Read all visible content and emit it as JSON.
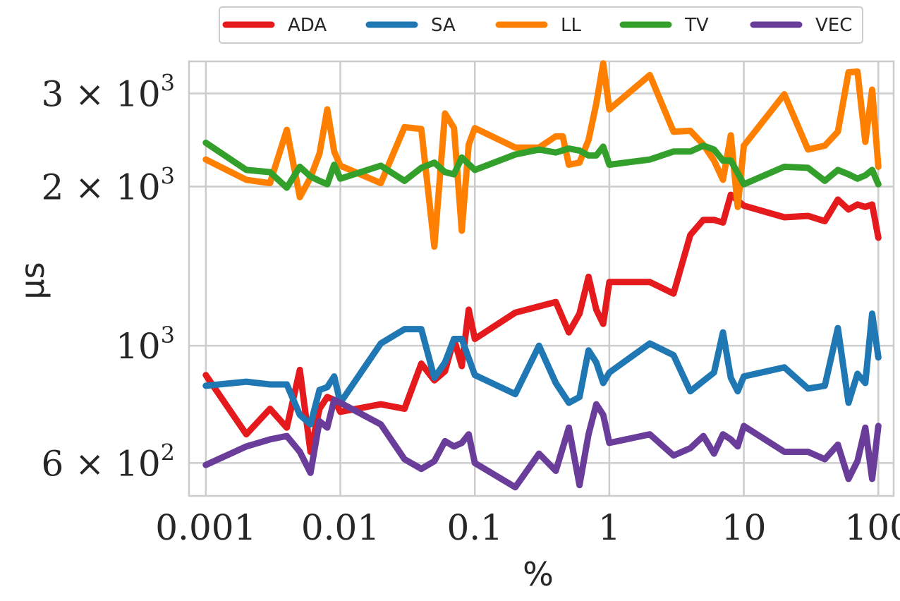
{
  "chart_data": {
    "type": "line",
    "title": "",
    "xlabel": "%",
    "ylabel": "μs",
    "xscale": "log",
    "yscale": "log",
    "xlim": [
      0.00075,
      130
    ],
    "ylim": [
      520,
      3450
    ],
    "grid": true,
    "legend_position": "top",
    "x_ticks": [
      {
        "value": 0.001,
        "label": "0.001"
      },
      {
        "value": 0.01,
        "label": "0.01"
      },
      {
        "value": 0.1,
        "label": "0.1"
      },
      {
        "value": 1,
        "label": "1"
      },
      {
        "value": 10,
        "label": "10"
      },
      {
        "value": 100,
        "label": "100"
      }
    ],
    "y_ticks": [
      {
        "value": 600,
        "mantissa": "6 ×",
        "base": "10",
        "exp": "2"
      },
      {
        "value": 1000,
        "mantissa": "",
        "base": "10",
        "exp": "3"
      },
      {
        "value": 2000,
        "mantissa": "2 ×",
        "base": "10",
        "exp": "3"
      },
      {
        "value": 3000,
        "mantissa": "3 ×",
        "base": "10",
        "exp": "3"
      }
    ],
    "series": [
      {
        "name": "ADA",
        "color": "#e41a1c",
        "points": [
          [
            0.001,
            880
          ],
          [
            0.002,
            680
          ],
          [
            0.003,
            760
          ],
          [
            0.004,
            700
          ],
          [
            0.005,
            900
          ],
          [
            0.006,
            630
          ],
          [
            0.007,
            760
          ],
          [
            0.008,
            800
          ],
          [
            0.009,
            790
          ],
          [
            0.01,
            750
          ],
          [
            0.02,
            775
          ],
          [
            0.03,
            760
          ],
          [
            0.04,
            925
          ],
          [
            0.05,
            860
          ],
          [
            0.06,
            895
          ],
          [
            0.07,
            1030
          ],
          [
            0.08,
            915
          ],
          [
            0.09,
            1170
          ],
          [
            0.1,
            1030
          ],
          [
            0.2,
            1155
          ],
          [
            0.4,
            1210
          ],
          [
            0.5,
            1060
          ],
          [
            0.6,
            1150
          ],
          [
            0.7,
            1350
          ],
          [
            0.8,
            1170
          ],
          [
            0.9,
            1100
          ],
          [
            1,
            1320
          ],
          [
            2,
            1320
          ],
          [
            3,
            1255
          ],
          [
            4,
            1620
          ],
          [
            5,
            1730
          ],
          [
            6,
            1730
          ],
          [
            7,
            1710
          ],
          [
            8,
            1930
          ],
          [
            10,
            1840
          ],
          [
            20,
            1750
          ],
          [
            30,
            1760
          ],
          [
            40,
            1720
          ],
          [
            50,
            1890
          ],
          [
            60,
            1810
          ],
          [
            70,
            1850
          ],
          [
            80,
            1830
          ],
          [
            90,
            1850
          ],
          [
            100,
            1600
          ]
        ]
      },
      {
        "name": "SA",
        "color": "#1f78b4",
        "points": [
          [
            0.001,
            840
          ],
          [
            0.002,
            855
          ],
          [
            0.003,
            845
          ],
          [
            0.004,
            845
          ],
          [
            0.005,
            740
          ],
          [
            0.006,
            710
          ],
          [
            0.007,
            825
          ],
          [
            0.008,
            835
          ],
          [
            0.009,
            875
          ],
          [
            0.01,
            780
          ],
          [
            0.02,
            1010
          ],
          [
            0.03,
            1075
          ],
          [
            0.04,
            1075
          ],
          [
            0.05,
            870
          ],
          [
            0.06,
            930
          ],
          [
            0.07,
            1030
          ],
          [
            0.08,
            1030
          ],
          [
            0.1,
            880
          ],
          [
            0.2,
            810
          ],
          [
            0.3,
            1000
          ],
          [
            0.4,
            850
          ],
          [
            0.5,
            780
          ],
          [
            0.6,
            800
          ],
          [
            0.7,
            980
          ],
          [
            0.8,
            930
          ],
          [
            0.9,
            850
          ],
          [
            1,
            890
          ],
          [
            2,
            1010
          ],
          [
            3,
            960
          ],
          [
            4,
            820
          ],
          [
            6,
            890
          ],
          [
            7,
            1060
          ],
          [
            8,
            870
          ],
          [
            9,
            820
          ],
          [
            10,
            875
          ],
          [
            20,
            910
          ],
          [
            30,
            830
          ],
          [
            40,
            840
          ],
          [
            50,
            1080
          ],
          [
            60,
            780
          ],
          [
            70,
            885
          ],
          [
            80,
            850
          ],
          [
            90,
            1150
          ],
          [
            100,
            950
          ]
        ]
      },
      {
        "name": "LL",
        "color": "#ff7f00",
        "points": [
          [
            0.001,
            2250
          ],
          [
            0.002,
            2060
          ],
          [
            0.003,
            2030
          ],
          [
            0.004,
            2560
          ],
          [
            0.005,
            1910
          ],
          [
            0.006,
            2080
          ],
          [
            0.007,
            2310
          ],
          [
            0.008,
            2800
          ],
          [
            0.009,
            2330
          ],
          [
            0.01,
            2190
          ],
          [
            0.02,
            2030
          ],
          [
            0.03,
            2590
          ],
          [
            0.04,
            2570
          ],
          [
            0.05,
            1540
          ],
          [
            0.06,
            2750
          ],
          [
            0.07,
            2580
          ],
          [
            0.08,
            1650
          ],
          [
            0.09,
            2400
          ],
          [
            0.1,
            2580
          ],
          [
            0.2,
            2370
          ],
          [
            0.3,
            2370
          ],
          [
            0.4,
            2490
          ],
          [
            0.45,
            2490
          ],
          [
            0.5,
            2200
          ],
          [
            0.6,
            2220
          ],
          [
            0.7,
            2450
          ],
          [
            0.8,
            2870
          ],
          [
            0.9,
            3420
          ],
          [
            1,
            2800
          ],
          [
            2,
            3250
          ],
          [
            3,
            2540
          ],
          [
            4,
            2550
          ],
          [
            5,
            2400
          ],
          [
            6,
            2240
          ],
          [
            7,
            2060
          ],
          [
            8,
            2500
          ],
          [
            9,
            1830
          ],
          [
            10,
            2390
          ],
          [
            20,
            2990
          ],
          [
            30,
            2350
          ],
          [
            40,
            2390
          ],
          [
            50,
            2540
          ],
          [
            60,
            3290
          ],
          [
            70,
            3300
          ],
          [
            80,
            2430
          ],
          [
            90,
            3050
          ],
          [
            100,
            2180
          ]
        ]
      },
      {
        "name": "TV",
        "color": "#33a02c",
        "points": [
          [
            0.001,
            2420
          ],
          [
            0.002,
            2150
          ],
          [
            0.003,
            2130
          ],
          [
            0.004,
            1990
          ],
          [
            0.005,
            2180
          ],
          [
            0.006,
            2090
          ],
          [
            0.007,
            2050
          ],
          [
            0.008,
            2020
          ],
          [
            0.009,
            2200
          ],
          [
            0.01,
            2070
          ],
          [
            0.02,
            2190
          ],
          [
            0.03,
            2050
          ],
          [
            0.04,
            2170
          ],
          [
            0.05,
            2220
          ],
          [
            0.06,
            2130
          ],
          [
            0.07,
            2110
          ],
          [
            0.08,
            2270
          ],
          [
            0.1,
            2150
          ],
          [
            0.2,
            2300
          ],
          [
            0.3,
            2350
          ],
          [
            0.4,
            2320
          ],
          [
            0.5,
            2360
          ],
          [
            0.6,
            2340
          ],
          [
            0.7,
            2290
          ],
          [
            0.8,
            2290
          ],
          [
            0.9,
            2380
          ],
          [
            1,
            2200
          ],
          [
            2,
            2250
          ],
          [
            3,
            2330
          ],
          [
            4,
            2330
          ],
          [
            5,
            2390
          ],
          [
            6,
            2350
          ],
          [
            7,
            2240
          ],
          [
            8,
            2240
          ],
          [
            10,
            2020
          ],
          [
            20,
            2180
          ],
          [
            30,
            2170
          ],
          [
            40,
            2050
          ],
          [
            50,
            2150
          ],
          [
            60,
            2110
          ],
          [
            70,
            2070
          ],
          [
            80,
            2100
          ],
          [
            90,
            2150
          ],
          [
            100,
            2020
          ]
        ]
      },
      {
        "name": "VEC",
        "color": "#6a3d9a",
        "points": [
          [
            0.001,
            595
          ],
          [
            0.002,
            645
          ],
          [
            0.003,
            665
          ],
          [
            0.004,
            675
          ],
          [
            0.005,
            630
          ],
          [
            0.006,
            575
          ],
          [
            0.007,
            720
          ],
          [
            0.008,
            700
          ],
          [
            0.009,
            790
          ],
          [
            0.01,
            780
          ],
          [
            0.02,
            710
          ],
          [
            0.03,
            610
          ],
          [
            0.04,
            585
          ],
          [
            0.05,
            605
          ],
          [
            0.06,
            660
          ],
          [
            0.07,
            645
          ],
          [
            0.08,
            655
          ],
          [
            0.09,
            680
          ],
          [
            0.1,
            600
          ],
          [
            0.2,
            540
          ],
          [
            0.3,
            625
          ],
          [
            0.4,
            580
          ],
          [
            0.5,
            700
          ],
          [
            0.6,
            545
          ],
          [
            0.7,
            680
          ],
          [
            0.8,
            775
          ],
          [
            0.9,
            740
          ],
          [
            1,
            655
          ],
          [
            2,
            680
          ],
          [
            3,
            620
          ],
          [
            4,
            640
          ],
          [
            5,
            675
          ],
          [
            6,
            625
          ],
          [
            7,
            680
          ],
          [
            8,
            665
          ],
          [
            9,
            645
          ],
          [
            10,
            705
          ],
          [
            20,
            630
          ],
          [
            30,
            630
          ],
          [
            40,
            610
          ],
          [
            50,
            650
          ],
          [
            60,
            560
          ],
          [
            70,
            605
          ],
          [
            80,
            700
          ],
          [
            90,
            560
          ],
          [
            100,
            705
          ]
        ]
      }
    ]
  }
}
